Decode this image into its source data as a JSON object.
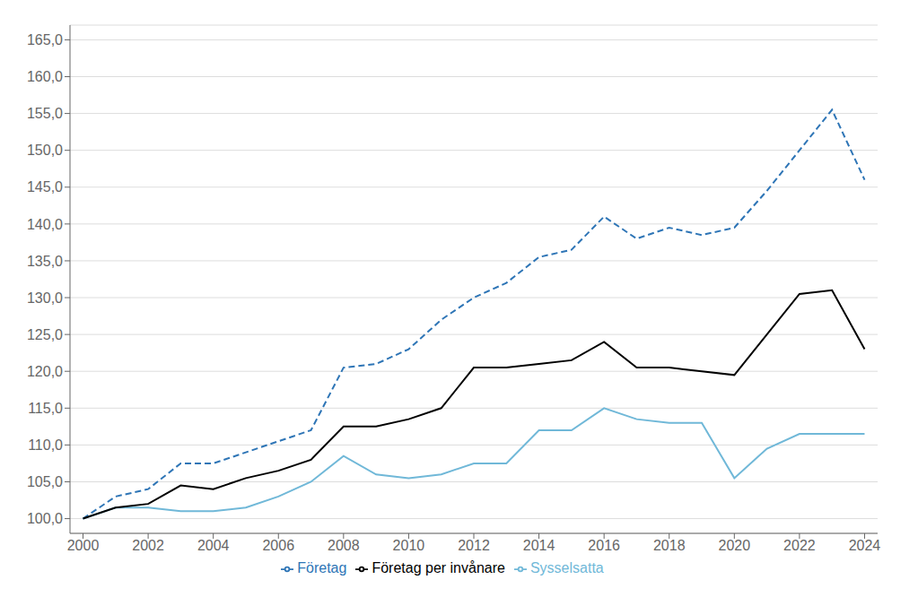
{
  "chart_data": {
    "type": "line",
    "x": [
      2000,
      2001,
      2002,
      2003,
      2004,
      2005,
      2006,
      2007,
      2008,
      2009,
      2010,
      2011,
      2012,
      2013,
      2014,
      2015,
      2016,
      2017,
      2018,
      2019,
      2020,
      2021,
      2022,
      2023,
      2024
    ],
    "series": [
      {
        "name": "Företag",
        "color": "#2E75B6",
        "line_style": "dashed",
        "values": [
          100.0,
          103.0,
          104.0,
          107.5,
          107.5,
          109.0,
          110.5,
          112.0,
          120.5,
          121.0,
          123.0,
          127.0,
          130.0,
          132.0,
          135.5,
          136.5,
          141.0,
          138.0,
          139.5,
          138.5,
          139.5,
          144.5,
          150.0,
          155.5,
          146.0
        ]
      },
      {
        "name": "Sysselsatta",
        "color": "#70B8D8",
        "line_style": "solid",
        "values": [
          100.0,
          101.5,
          101.5,
          101.0,
          101.0,
          101.5,
          103.0,
          105.0,
          108.5,
          106.0,
          105.5,
          106.0,
          107.5,
          107.5,
          112.0,
          112.0,
          115.0,
          113.5,
          113.0,
          113.0,
          105.5,
          109.5,
          111.5,
          111.5,
          111.5
        ]
      },
      {
        "name": "Företag per invånare",
        "color": "#000000",
        "line_style": "solid",
        "values": [
          100.0,
          101.5,
          102.0,
          104.5,
          104.0,
          105.5,
          106.5,
          108.0,
          112.5,
          112.5,
          113.5,
          115.0,
          120.5,
          120.5,
          121.0,
          121.5,
          124.0,
          120.5,
          120.5,
          120.0,
          119.5,
          125.0,
          130.5,
          131.0,
          123.0
        ]
      }
    ],
    "xlim": [
      1999.6,
      2024.4
    ],
    "xticks": [
      2000,
      2002,
      2004,
      2006,
      2008,
      2010,
      2012,
      2014,
      2016,
      2018,
      2020,
      2022,
      2024
    ],
    "ylim": [
      98.0,
      167.0
    ],
    "yticks": [
      {
        "value": 100.0,
        "label": "100,0"
      },
      {
        "value": 105.0,
        "label": "105,0"
      },
      {
        "value": 110.0,
        "label": "110,0"
      },
      {
        "value": 115.0,
        "label": "115,0"
      },
      {
        "value": 120.0,
        "label": "120,0"
      },
      {
        "value": 125.0,
        "label": "125,0"
      },
      {
        "value": 130.0,
        "label": "130,0"
      },
      {
        "value": 135.0,
        "label": "135,0"
      },
      {
        "value": 140.0,
        "label": "140,0"
      },
      {
        "value": 145.0,
        "label": "145,0"
      },
      {
        "value": 150.0,
        "label": "150,0"
      },
      {
        "value": 155.0,
        "label": "155,0"
      },
      {
        "value": 160.0,
        "label": "160,0"
      },
      {
        "value": 165.0,
        "label": "165,0"
      }
    ],
    "grid": true,
    "legend": "bottom"
  }
}
